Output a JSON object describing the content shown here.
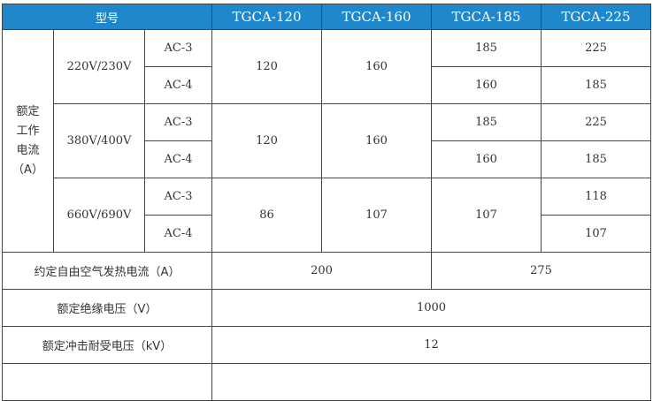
{
  "header": {
    "model_label": "型号",
    "models": [
      "TGCA-120",
      "TGCA-160",
      "TGCA-185",
      "TGCA-225"
    ]
  },
  "rated_current": {
    "label_lines": [
      "额定",
      "工作",
      "电流",
      "（A）"
    ],
    "groups": [
      {
        "voltage": "220V/230V",
        "ac3": "AC-3",
        "ac4": "AC-4",
        "tgca120": "120",
        "tgca160": "160",
        "tgca185": [
          "185",
          "160"
        ],
        "tgca225": [
          "225",
          "185"
        ]
      },
      {
        "voltage": "380V/400V",
        "ac3": "AC-3",
        "ac4": "AC-4",
        "tgca120": "120",
        "tgca160": "160",
        "tgca185": [
          "185",
          "160"
        ],
        "tgca225": [
          "225",
          "185"
        ]
      },
      {
        "voltage": "660V/690V",
        "ac3": "AC-3",
        "ac4": "AC-4",
        "tgca120": "86",
        "tgca160": "107",
        "tgca185": "107",
        "tgca225": [
          "118",
          "107"
        ]
      }
    ]
  },
  "thermal_current": {
    "label": "约定自由空气发热电流（A）",
    "values": [
      "200",
      "275"
    ]
  },
  "insulation_voltage": {
    "label": "额定绝缘电压（V）",
    "value": "1000"
  },
  "impulse_voltage": {
    "label": "额定冲击耐受电压（kV）",
    "value": "12"
  }
}
